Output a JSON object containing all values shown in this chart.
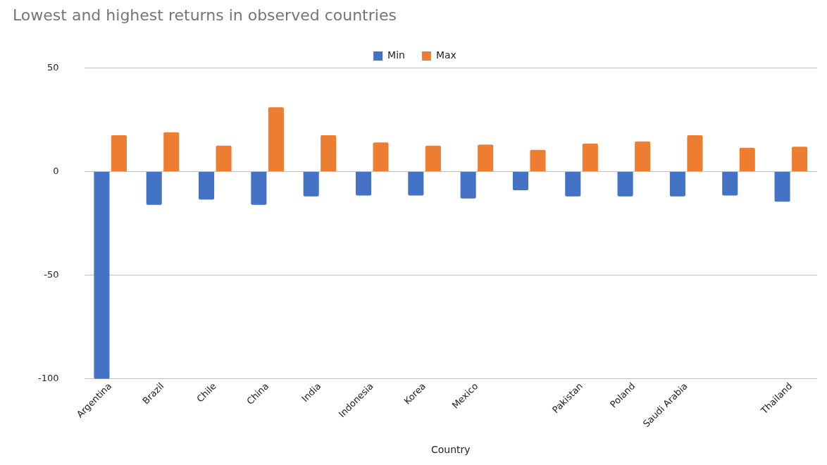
{
  "chart_data": {
    "type": "bar",
    "title": "Lowest and highest returns in observed countries",
    "xlabel": "Country",
    "categories": [
      "Argentina",
      "Brazil",
      "Chile",
      "China",
      "India",
      "Indonesia",
      "Korea",
      "Mexico",
      null,
      "Pakistan",
      "Poland",
      "Saudi Arabia",
      null,
      "Thailand"
    ],
    "series": [
      {
        "name": "Min",
        "color": "#4472c4",
        "values": [
          -100,
          -16,
          -13.5,
          -16,
          -12,
          -11.5,
          -11.5,
          -13,
          -9,
          -12,
          -12,
          -12,
          -11.5,
          -14.5
        ]
      },
      {
        "name": "Max",
        "color": "#ed7d31",
        "values": [
          17.5,
          19,
          12.5,
          31,
          17.5,
          14,
          12.5,
          13,
          10.5,
          13.5,
          14.5,
          17.5,
          11.5,
          12
        ]
      }
    ],
    "ylim": [
      -100,
      50
    ],
    "yticks": [
      -100,
      -50,
      0,
      50
    ],
    "grid": "y",
    "legend": "top"
  }
}
